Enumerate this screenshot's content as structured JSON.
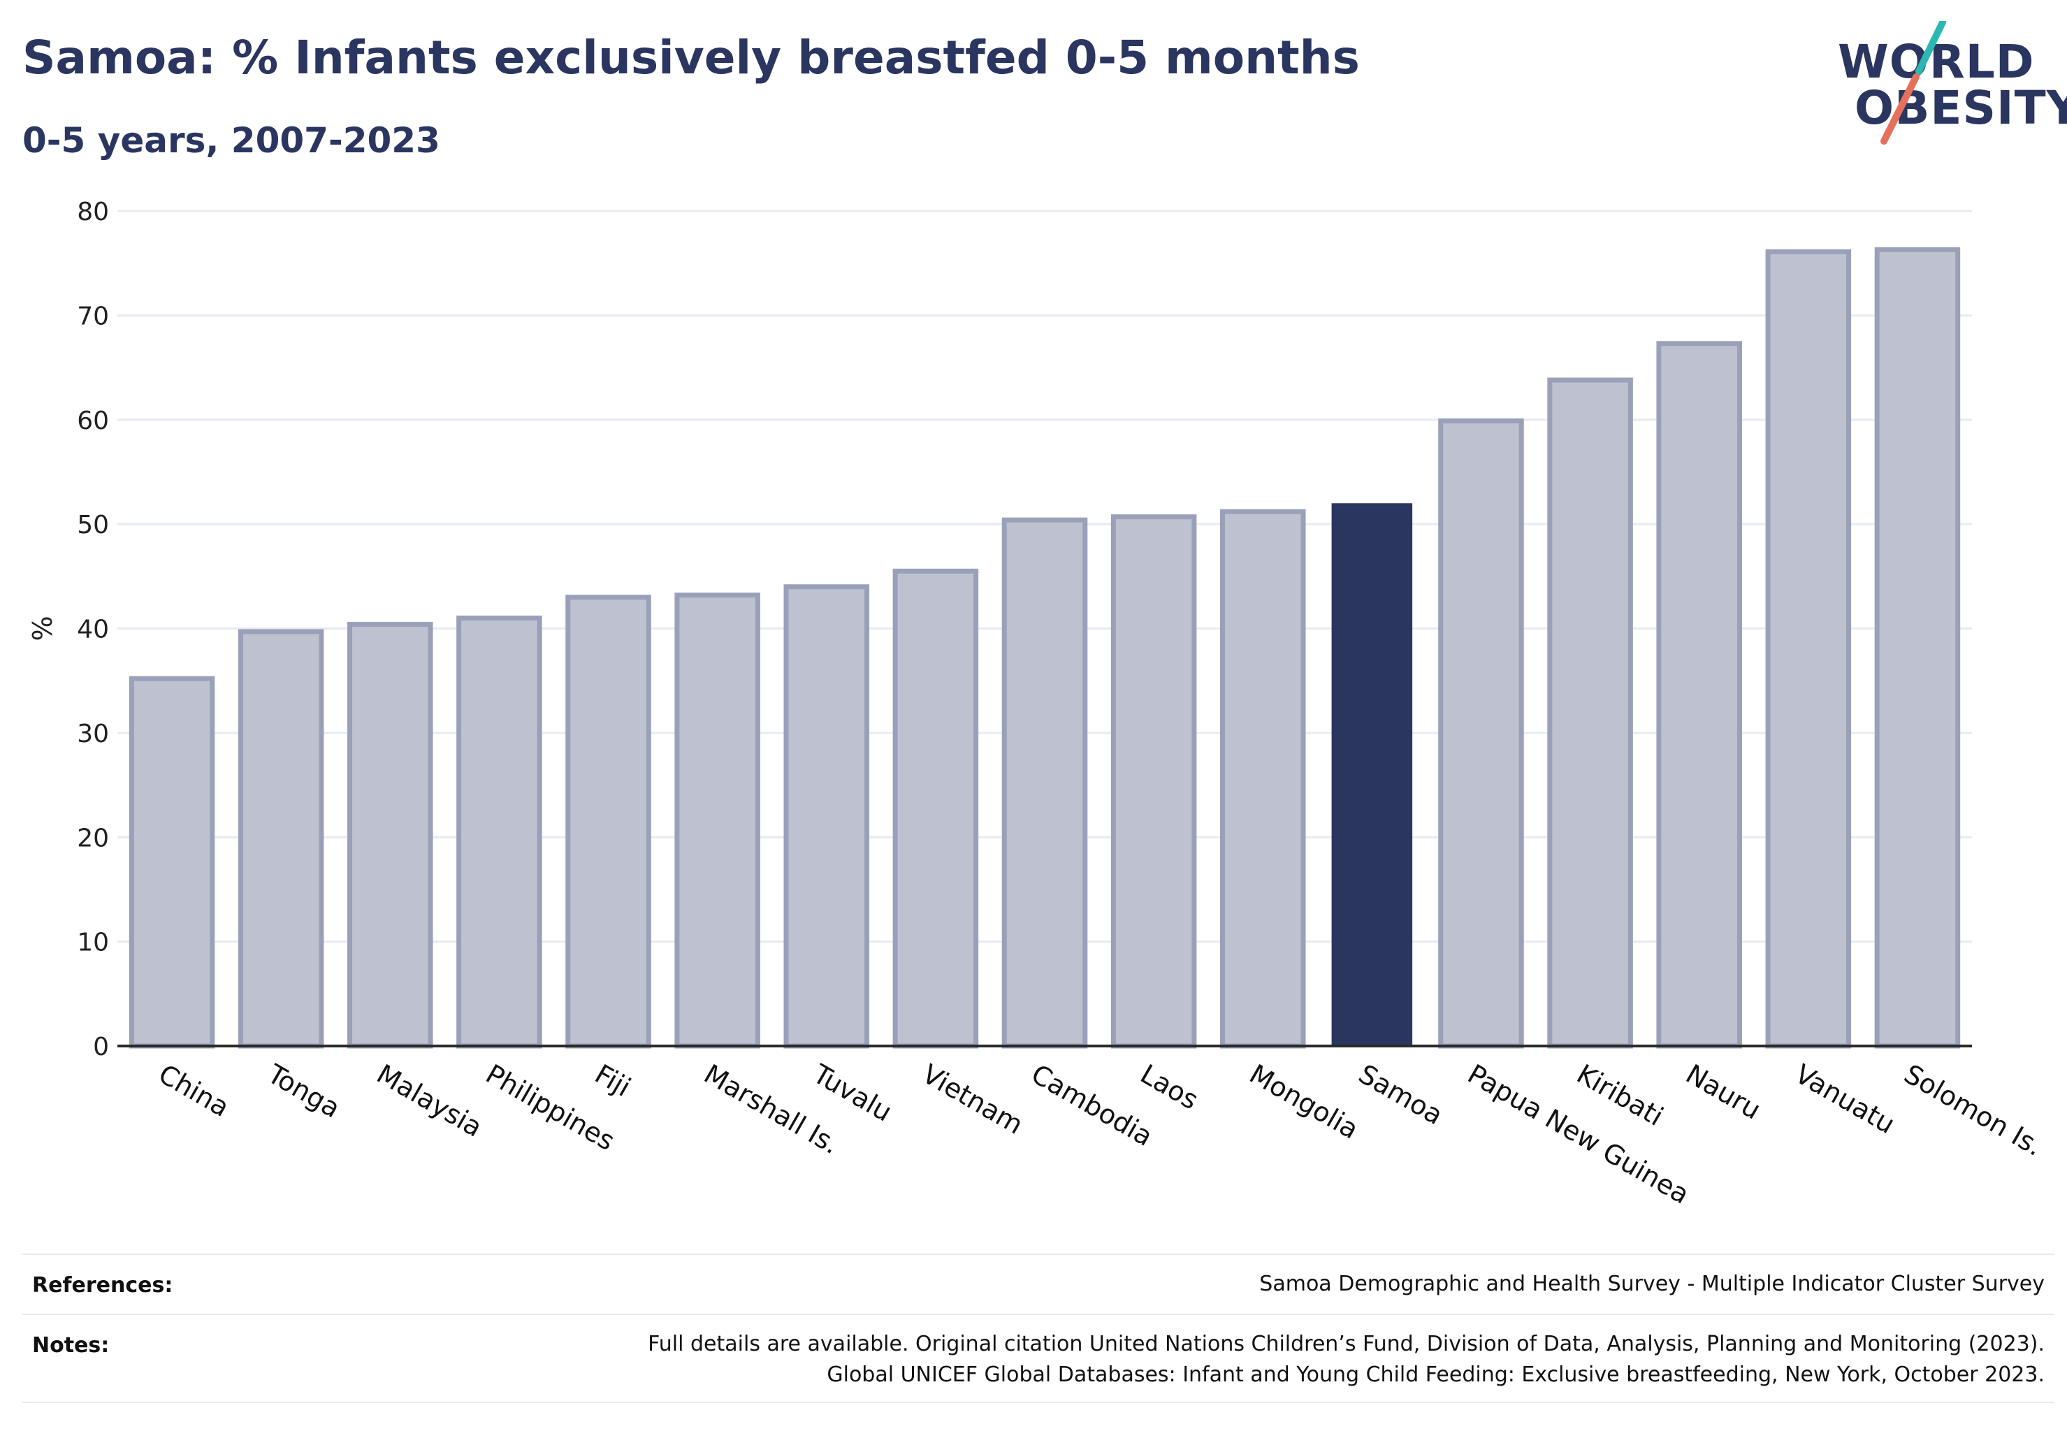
{
  "header": {
    "title": "Samoa: % Infants exclusively breastfed 0-5 months",
    "subtitle": "0-5 years, 2007-2023"
  },
  "logo": {
    "line1": "WORLD",
    "line2": "OBESITY",
    "accent_teal": "#2bb7b3",
    "accent_coral": "#e5705c"
  },
  "colors": {
    "bar_default_fill": "#bec1cf",
    "bar_default_stroke": "#9aa0b8",
    "bar_highlight_fill": "#2a3560",
    "grid": "#e8eaf2",
    "axis": "#2a2a2a",
    "text": "#2a3560"
  },
  "chart_data": {
    "type": "bar",
    "categories": [
      "China",
      "Tonga",
      "Malaysia",
      "Philippines",
      "Fiji",
      "Marshall Is.",
      "Tuvalu",
      "Vietnam",
      "Cambodia",
      "Laos",
      "Mongolia",
      "Samoa",
      "Papua New Guinea",
      "Kiribati",
      "Nauru",
      "Vanuatu",
      "Solomon Is."
    ],
    "values": [
      35.2,
      39.7,
      40.4,
      41.0,
      43.0,
      43.2,
      44.0,
      45.5,
      50.4,
      50.7,
      51.2,
      52.0,
      59.9,
      63.8,
      67.3,
      76.1,
      76.3
    ],
    "highlight": "Samoa",
    "ylabel": "%",
    "ylim": [
      0,
      80
    ],
    "yticks": [
      0,
      10,
      20,
      30,
      40,
      50,
      60,
      70,
      80
    ],
    "grid": true,
    "legend": false
  },
  "footer": {
    "references_label": "References:",
    "references_value": "Samoa Demographic and Health Survey - Multiple Indicator Cluster Survey",
    "notes_label": "Notes:",
    "notes_line1": "Full details are available. Original citation United Nations Children’s Fund, Division of Data, Analysis, Planning and Monitoring (2023).",
    "notes_line2": "Global UNICEF Global Databases: Infant and Young Child Feeding: Exclusive breastfeeding, New York, October 2023."
  }
}
